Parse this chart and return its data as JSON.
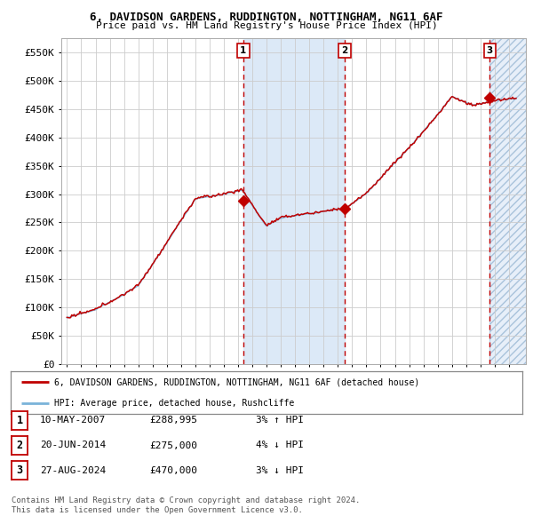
{
  "title_line1": "6, DAVIDSON GARDENS, RUDDINGTON, NOTTINGHAM, NG11 6AF",
  "title_line2": "Price paid vs. HM Land Registry's House Price Index (HPI)",
  "xlim_start": 1994.6,
  "xlim_end": 2027.2,
  "ylim": [
    0,
    575000
  ],
  "yticks": [
    0,
    50000,
    100000,
    150000,
    200000,
    250000,
    300000,
    350000,
    400000,
    450000,
    500000,
    550000
  ],
  "ytick_labels": [
    "£0",
    "£50K",
    "£100K",
    "£150K",
    "£200K",
    "£250K",
    "£300K",
    "£350K",
    "£400K",
    "£450K",
    "£500K",
    "£550K"
  ],
  "sale_dates": [
    2007.36,
    2014.47,
    2024.66
  ],
  "sale_prices": [
    288995,
    275000,
    470000
  ],
  "sale_labels": [
    "1",
    "2",
    "3"
  ],
  "hpi_color": "#7ab3d9",
  "price_color": "#c00000",
  "sale_marker_color": "#c00000",
  "background_color": "#ffffff",
  "plot_bg_color": "#ffffff",
  "grid_color": "#cccccc",
  "legend_label_price": "6, DAVIDSON GARDENS, RUDDINGTON, NOTTINGHAM, NG11 6AF (detached house)",
  "legend_label_hpi": "HPI: Average price, detached house, Rushcliffe",
  "table_rows": [
    [
      "1",
      "10-MAY-2007",
      "£288,995",
      "3% ↑ HPI"
    ],
    [
      "2",
      "20-JUN-2014",
      "£275,000",
      "4% ↓ HPI"
    ],
    [
      "3",
      "27-AUG-2024",
      "£470,000",
      "3% ↓ HPI"
    ]
  ],
  "footnote": "Contains HM Land Registry data © Crown copyright and database right 2024.\nThis data is licensed under the Open Government Licence v3.0.",
  "shaded_region_color": "#dce9f7",
  "hatched_region_color": "#c5d9f1"
}
